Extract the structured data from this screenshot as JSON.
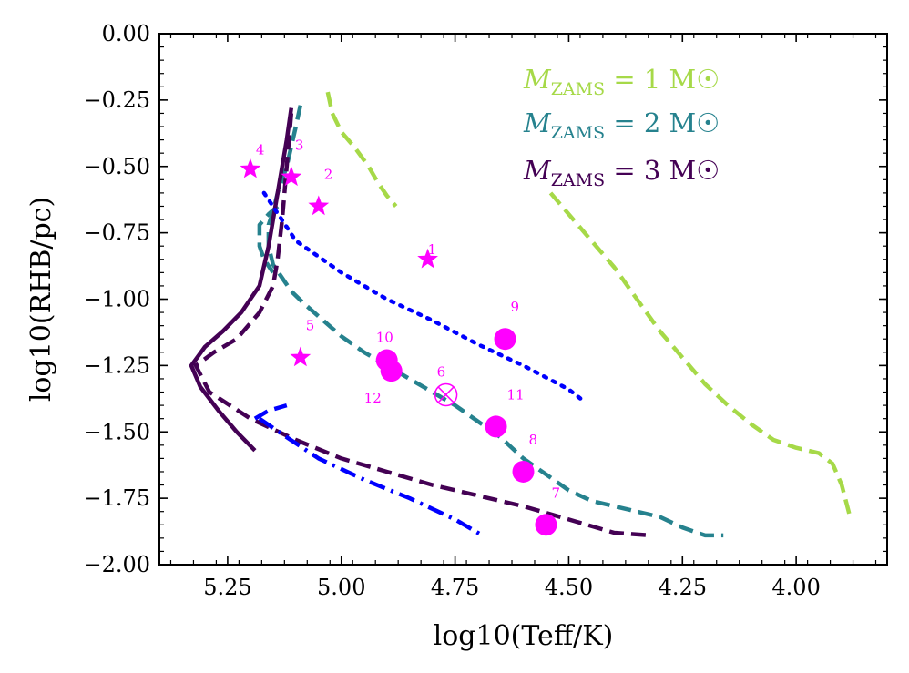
{
  "chart_data": {
    "type": "line",
    "title": "",
    "xlabel": "log10(Teff/K)",
    "ylabel": "log10(RHB/pc)",
    "xlim": [
      5.4,
      3.8
    ],
    "ylim": [
      -2.0,
      0.0
    ],
    "x_ticks": [
      "5.25",
      "5.00",
      "4.75",
      "4.50",
      "4.25",
      "4.00"
    ],
    "x_tick_values": [
      5.25,
      5.0,
      4.75,
      4.5,
      4.25,
      4.0
    ],
    "y_ticks": [
      "0.00",
      "−0.25",
      "−0.50",
      "−0.75",
      "−1.00",
      "−1.25",
      "−1.50",
      "−1.75",
      "−2.00"
    ],
    "y_tick_values": [
      0.0,
      -0.25,
      -0.5,
      -0.75,
      -1.0,
      -1.25,
      -1.5,
      -1.75,
      -2.0
    ],
    "legend": {
      "position": "top-right",
      "entries": [
        {
          "label": "M_ZAMS = 1 M☉",
          "prefix": "M",
          "subscript": "ZAMS",
          "suffix": " = 1 M☉",
          "color": "#a6d948"
        },
        {
          "label": "M_ZAMS = 2 M☉",
          "prefix": "M",
          "subscript": "ZAMS",
          "suffix": " = 2 M☉",
          "color": "#26828e"
        },
        {
          "label": "M_ZAMS = 3 M☉",
          "prefix": "M",
          "subscript": "ZAMS",
          "suffix": " = 3 M☉",
          "color": "#440154"
        }
      ]
    },
    "series": [
      {
        "name": "1 Msun early",
        "color": "#a6d948",
        "style": "dashed",
        "x": [
          5.03,
          5.02,
          5.0,
          4.97,
          4.94,
          4.92,
          4.9,
          4.88
        ],
        "y": [
          -0.22,
          -0.3,
          -0.37,
          -0.43,
          -0.5,
          -0.56,
          -0.61,
          -0.65
        ]
      },
      {
        "name": "1 Msun late",
        "color": "#a6d948",
        "style": "dashed",
        "x": [
          4.54,
          4.5,
          4.45,
          4.4,
          4.35,
          4.3,
          4.25,
          4.2,
          4.15,
          4.1,
          4.05,
          4.0,
          3.95,
          3.92,
          3.9,
          3.88
        ],
        "y": [
          -0.6,
          -0.68,
          -0.78,
          -0.88,
          -1.0,
          -1.12,
          -1.22,
          -1.32,
          -1.4,
          -1.47,
          -1.53,
          -1.56,
          -1.58,
          -1.62,
          -1.7,
          -1.83
        ]
      },
      {
        "name": "2 Msun main",
        "color": "#26828e",
        "style": "dashed",
        "x": [
          5.09,
          5.1,
          5.12,
          5.14,
          5.15,
          5.16,
          5.16,
          5.15,
          5.13,
          5.11,
          5.08,
          5.04,
          5.0,
          4.95,
          4.9,
          4.85,
          4.8,
          4.75,
          4.7,
          4.65,
          4.6,
          4.55,
          4.5,
          4.45,
          4.4,
          4.35,
          4.3,
          4.25,
          4.2,
          4.16
        ],
        "y": [
          -0.27,
          -0.35,
          -0.5,
          -0.6,
          -0.67,
          -0.72,
          -0.8,
          -0.87,
          -0.92,
          -0.97,
          -1.02,
          -1.08,
          -1.14,
          -1.2,
          -1.25,
          -1.3,
          -1.35,
          -1.4,
          -1.46,
          -1.52,
          -1.6,
          -1.66,
          -1.72,
          -1.76,
          -1.78,
          -1.8,
          -1.82,
          -1.86,
          -1.89,
          -1.89
        ]
      },
      {
        "name": "2 Msun loop",
        "color": "#26828e",
        "style": "dashed",
        "x": [
          5.14,
          5.16,
          5.18,
          5.18,
          5.17,
          5.15
        ],
        "y": [
          -0.65,
          -0.68,
          -0.72,
          -0.8,
          -0.85,
          -0.9
        ]
      },
      {
        "name": "3 Msun track A",
        "color": "#440154",
        "style": "solid",
        "x": [
          5.11,
          5.12,
          5.14,
          5.16,
          5.18,
          5.22,
          5.26,
          5.3,
          5.33,
          5.31,
          5.27,
          5.23,
          5.19
        ],
        "y": [
          -0.28,
          -0.4,
          -0.6,
          -0.8,
          -0.95,
          -1.05,
          -1.12,
          -1.18,
          -1.25,
          -1.33,
          -1.42,
          -1.5,
          -1.57
        ]
      },
      {
        "name": "3 Msun track B",
        "color": "#440154",
        "style": "dashed",
        "x": [
          5.11,
          5.12,
          5.13,
          5.14,
          5.15,
          5.18,
          5.23,
          5.28,
          5.32,
          5.29,
          5.2,
          5.1,
          5.0,
          4.9,
          4.8,
          4.7,
          4.6,
          4.5,
          4.4,
          4.32
        ],
        "y": [
          -0.3,
          -0.5,
          -0.7,
          -0.85,
          -0.95,
          -1.05,
          -1.15,
          -1.2,
          -1.25,
          -1.35,
          -1.45,
          -1.53,
          -1.6,
          -1.65,
          -1.7,
          -1.74,
          -1.78,
          -1.83,
          -1.88,
          -1.89
        ]
      },
      {
        "name": "blue dotted",
        "color": "#0000ff",
        "style": "dotted",
        "x": [
          5.17,
          5.1,
          5.0,
          4.9,
          4.8,
          4.7,
          4.6,
          4.5,
          4.47
        ],
        "y": [
          -0.6,
          -0.78,
          -0.9,
          -1.0,
          -1.08,
          -1.17,
          -1.25,
          -1.34,
          -1.38
        ]
      },
      {
        "name": "blue dashdot",
        "color": "#0000ff",
        "style": "dashdot",
        "x": [
          5.18,
          5.12,
          5.05,
          4.95,
          4.85,
          4.75,
          4.69
        ],
        "y": [
          -1.45,
          -1.52,
          -1.6,
          -1.68,
          -1.75,
          -1.83,
          -1.89
        ]
      },
      {
        "name": "blue short dash",
        "color": "#0000ff",
        "style": "dashed",
        "x": [
          5.19,
          5.16,
          5.12
        ],
        "y": [
          -1.45,
          -1.42,
          -1.4
        ]
      }
    ],
    "points": [
      {
        "label": "1",
        "x": 4.81,
        "y": -0.85,
        "marker": "star",
        "label_dx": 0,
        "label_dy": -6
      },
      {
        "label": "2",
        "x": 5.05,
        "y": -0.65,
        "marker": "star",
        "label_dx": 6,
        "label_dy": -30
      },
      {
        "label": "3",
        "x": 5.11,
        "y": -0.54,
        "marker": "star",
        "label_dx": 4,
        "label_dy": -30
      },
      {
        "label": "4",
        "x": 5.2,
        "y": -0.51,
        "marker": "star",
        "label_dx": 6,
        "label_dy": -16
      },
      {
        "label": "5",
        "x": 5.09,
        "y": -1.22,
        "marker": "star",
        "label_dx": 6,
        "label_dy": -30
      },
      {
        "label": "6",
        "x": 4.77,
        "y": -1.36,
        "marker": "otimes",
        "label_dx": -10,
        "label_dy": -20
      },
      {
        "label": "7",
        "x": 4.55,
        "y": -1.85,
        "marker": "circle",
        "label_dx": 6,
        "label_dy": -30
      },
      {
        "label": "8",
        "x": 4.6,
        "y": -1.65,
        "marker": "circle",
        "label_dx": 6,
        "label_dy": -30
      },
      {
        "label": "9",
        "x": 4.64,
        "y": -1.15,
        "marker": "circle",
        "label_dx": 6,
        "label_dy": -30
      },
      {
        "label": "10",
        "x": 4.9,
        "y": -1.23,
        "marker": "circle",
        "label_dx": -12,
        "label_dy": -20
      },
      {
        "label": "11",
        "x": 4.66,
        "y": -1.48,
        "marker": "circle",
        "label_dx": 12,
        "label_dy": -30
      },
      {
        "label": "12",
        "x": 4.89,
        "y": -1.27,
        "marker": "circle",
        "label_dx": -30,
        "label_dy": 35
      }
    ],
    "grid": false
  }
}
